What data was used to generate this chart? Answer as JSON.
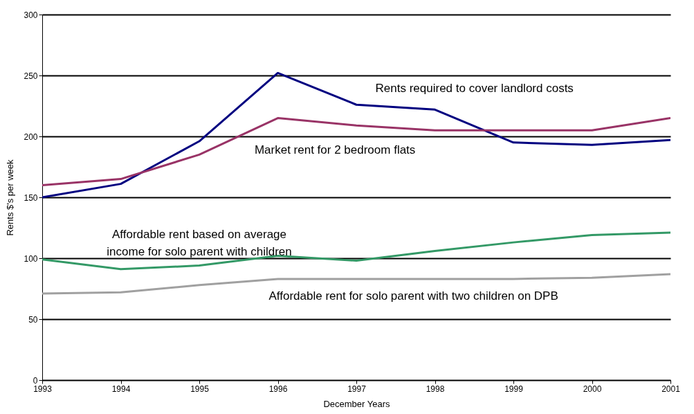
{
  "chart_data": {
    "type": "line",
    "xlabel": "December Years",
    "ylabel": "Rents $'s per week",
    "x": [
      1993,
      1994,
      1995,
      1996,
      1997,
      1998,
      1999,
      2000,
      2001
    ],
    "xlim": [
      1993,
      2001
    ],
    "xticks": [
      1993,
      1994,
      1995,
      1996,
      1997,
      1998,
      1999,
      2000,
      2001
    ],
    "ylim": [
      0,
      300
    ],
    "yticks": [
      0,
      50,
      100,
      150,
      200,
      250,
      300
    ],
    "grid": "y",
    "marker": "none",
    "line_style": "solid",
    "series": [
      {
        "color": "#000080",
        "values": [
          150,
          161,
          196,
          252,
          226,
          222,
          195,
          193,
          197
        ]
      },
      {
        "color": "#993366",
        "values": [
          160,
          165,
          185,
          215,
          209,
          205,
          205,
          205,
          215
        ]
      },
      {
        "color": "#339966",
        "values": [
          99,
          91,
          94,
          102,
          98,
          106,
          113,
          119,
          121
        ]
      },
      {
        "color": "#a0a0a0",
        "values": [
          71,
          72,
          78,
          83,
          83,
          83,
          83,
          84,
          87
        ]
      }
    ],
    "annotations": [
      "Rents required to cover landlord costs",
      "Market rent for 2 bedroom flats",
      "Affordable rent based on average\nincome for solo parent with children",
      "Affordable rent for solo parent with two children on DPB"
    ]
  }
}
